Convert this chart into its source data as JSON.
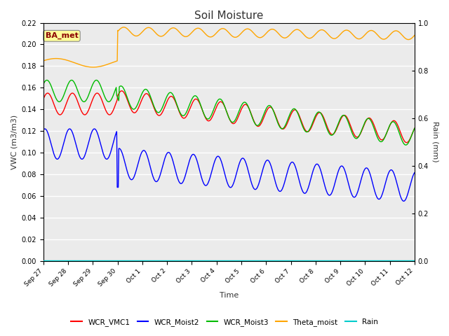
{
  "title": "Soil Moisture",
  "ylabel_left": "VWC (m3/m3)",
  "ylabel_right": "Rain (mm)",
  "xlabel": "Time",
  "ylim_left": [
    0.0,
    0.22
  ],
  "ylim_right": [
    0.0,
    1.0
  ],
  "yticks_left": [
    0.0,
    0.02,
    0.04,
    0.06,
    0.08,
    0.1,
    0.12,
    0.14,
    0.16,
    0.18,
    0.2,
    0.22
  ],
  "yticks_right": [
    0.0,
    0.2,
    0.4,
    0.6,
    0.8,
    1.0
  ],
  "annotation_text": "BA_met",
  "annotation_color": "#8B0000",
  "annotation_bg": "#FFFF99",
  "line_colors": {
    "WCR_VMC1": "#FF0000",
    "WCR_Moist2": "#0000FF",
    "WCR_Moist3": "#00BB00",
    "Theta_moist": "#FFA500",
    "Rain": "#00CCCC"
  },
  "xtick_labels": [
    "Sep 27",
    "Sep 28",
    "Sep 29",
    "Sep 30",
    "Oct 1",
    "Oct 2",
    "Oct 3",
    "Oct 4",
    "Oct 5",
    "Oct 6",
    "Oct 7",
    "Oct 8",
    "Oct 9",
    "Oct 10",
    "Oct 11",
    "Oct 12"
  ],
  "background_color": "#EBEBEB",
  "grid_color": "#FFFFFF",
  "fig_bg": "#FFFFFF"
}
